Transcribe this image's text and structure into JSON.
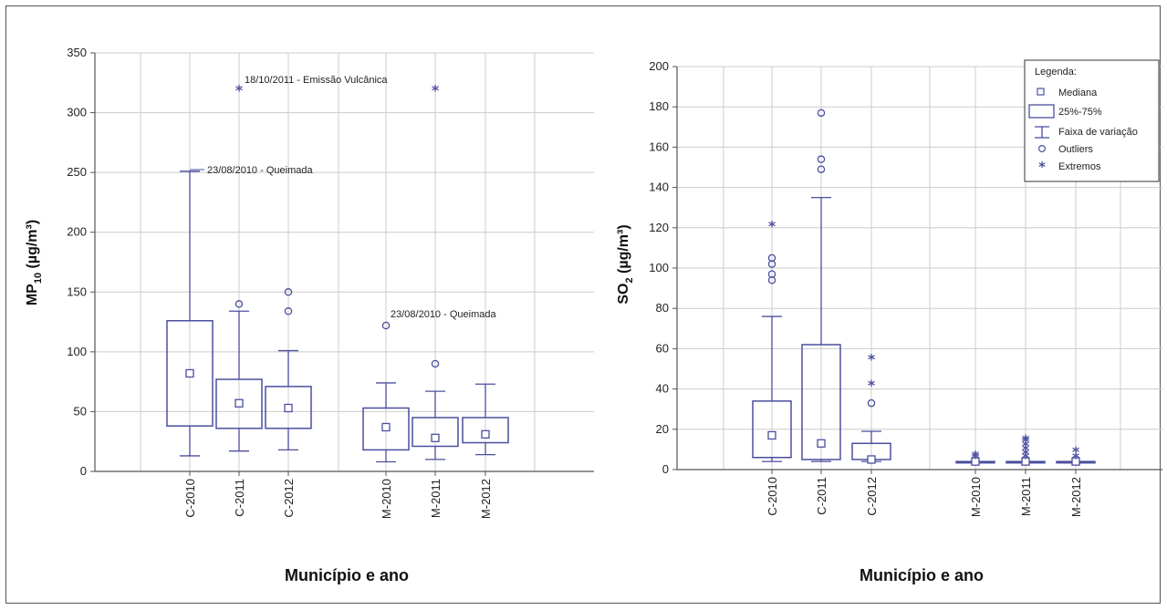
{
  "chart_data": [
    {
      "type": "boxplot",
      "xlabel": "Município e ano",
      "ylabel_main": "MP",
      "ylabel_sub": "10",
      "ylabel_unit": " (µg/m³)",
      "ylim": [
        0,
        350
      ],
      "yticks": [
        0,
        50,
        100,
        150,
        200,
        250,
        300,
        350
      ],
      "grid": true,
      "categories": [
        "C-2010",
        "C-2011",
        "C-2012",
        "M-2010",
        "M-2011",
        "M-2012"
      ],
      "boxes": [
        {
          "category": "C-2010",
          "min": 13,
          "q1": 38,
          "median": 82,
          "q3": 126,
          "max": 251,
          "outliers": [],
          "extremes": []
        },
        {
          "category": "C-2011",
          "min": 17,
          "q1": 36,
          "median": 57,
          "q3": 77,
          "max": 134,
          "outliers": [
            140
          ],
          "extremes": [
            319
          ]
        },
        {
          "category": "C-2012",
          "min": 18,
          "q1": 36,
          "median": 53,
          "q3": 71,
          "max": 101,
          "outliers": [
            134,
            150
          ],
          "extremes": []
        },
        {
          "category": "M-2010",
          "min": 8,
          "q1": 18,
          "median": 37,
          "q3": 53,
          "max": 74,
          "outliers": [
            122
          ],
          "extremes": []
        },
        {
          "category": "M-2011",
          "min": 10,
          "q1": 21,
          "median": 28,
          "q3": 45,
          "max": 67,
          "outliers": [
            90
          ],
          "extremes": [
            319
          ]
        },
        {
          "category": "M-2012",
          "min": 14,
          "q1": 24,
          "median": 31,
          "q3": 45,
          "max": 73,
          "outliers": [],
          "extremes": []
        }
      ],
      "annotations": [
        {
          "text": "18/10/2011 - Emissão Vulcânica",
          "y": 328
        },
        {
          "text": "23/08/2010 - Queimada",
          "y": 251
        },
        {
          "text": "23/08/2010 - Queimada",
          "y": 130
        }
      ]
    },
    {
      "type": "boxplot",
      "xlabel": "Município e ano",
      "ylabel_main": "SO",
      "ylabel_sub": "2",
      "ylabel_unit": " (µg/m³)",
      "ylim": [
        0,
        200
      ],
      "yticks": [
        0,
        20,
        40,
        60,
        80,
        100,
        120,
        140,
        160,
        180,
        200
      ],
      "grid": true,
      "categories": [
        "C-2010",
        "C-2011",
        "C-2012",
        "M-2010",
        "M-2011",
        "M-2012"
      ],
      "boxes": [
        {
          "category": "C-2010",
          "min": 4,
          "q1": 6,
          "median": 17,
          "q3": 34,
          "max": 76,
          "outliers": [
            94,
            97,
            102,
            105
          ],
          "extremes": [
            121
          ]
        },
        {
          "category": "C-2011",
          "min": 4,
          "q1": 5,
          "median": 13,
          "q3": 62,
          "max": 135,
          "outliers": [
            149,
            154,
            177
          ],
          "extremes": []
        },
        {
          "category": "C-2012",
          "min": 4,
          "q1": 5,
          "median": 5,
          "q3": 13,
          "max": 19,
          "outliers": [
            33
          ],
          "extremes": [
            42,
            55
          ]
        },
        {
          "category": "M-2010",
          "min": 4,
          "q1": 4,
          "median": 4,
          "q3": 4,
          "max": 4,
          "outliers": [],
          "extremes": [
            6,
            7
          ]
        },
        {
          "category": "M-2011",
          "min": 4,
          "q1": 4,
          "median": 4,
          "q3": 4,
          "max": 4,
          "outliers": [],
          "extremes": [
            6,
            8,
            10,
            12,
            14,
            15
          ]
        },
        {
          "category": "M-2012",
          "min": 4,
          "q1": 4,
          "median": 4,
          "q3": 4,
          "max": 4,
          "outliers": [],
          "extremes": [
            6,
            9
          ]
        }
      ],
      "legend": {
        "title": "Legenda:",
        "placement": "top-right",
        "items": [
          "Mediana",
          "25%-75%",
          "Faixa de variação",
          "Outliers",
          "Extremos"
        ]
      }
    }
  ],
  "colors": {
    "series": "#4b4f9e",
    "grid": "#cccccc",
    "axis": "#555555"
  }
}
